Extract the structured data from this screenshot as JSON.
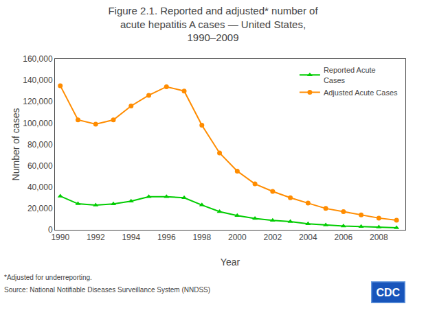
{
  "chart_data": {
    "type": "line",
    "title": "Figure 2.1. Reported and adjusted* number of\nacute hepatitis A cases — United States,\n1990–2009",
    "x_label": "Year",
    "y_label": "Number of cases",
    "x": [
      1990,
      1991,
      1992,
      1993,
      1994,
      1995,
      1996,
      1997,
      1998,
      1999,
      2000,
      2001,
      2002,
      2003,
      2004,
      2005,
      2006,
      2007,
      2008,
      2009
    ],
    "series": [
      {
        "name": "Adjusted Acute Cases",
        "color": "#FF8C00",
        "marker": "circle",
        "line_style": "solid",
        "values": [
          135000,
          103000,
          99000,
          103000,
          116000,
          126000,
          134000,
          130000,
          98000,
          72000,
          55000,
          43000,
          36000,
          30000,
          25000,
          20000,
          17000,
          14000,
          11000,
          9000
        ]
      },
      {
        "name": "Reported Acute\nCases",
        "color": "#00CC00",
        "marker": "triangle-up",
        "line_style": "solid",
        "values": [
          31522,
          24378,
          23112,
          24238,
          26796,
          31032,
          31032,
          30021,
          23229,
          17047,
          13397,
          10616,
          8795,
          7653,
          5683,
          4488,
          3579,
          2979,
          2585,
          1987
        ]
      }
    ],
    "xlim": [
      1989.7,
      2009.5
    ],
    "xticks": [
      1990,
      1992,
      1994,
      1996,
      1998,
      2000,
      2002,
      2004,
      2006,
      2008
    ],
    "ylim": [
      0,
      160000
    ],
    "yticks": [
      0,
      {
        "value": 20000,
        "label": "20,000"
      },
      {
        "value": 40000,
        "label": "40,000"
      },
      {
        "value": 60000,
        "label": "60,000"
      },
      {
        "value": 80000,
        "label": "80,000"
      },
      {
        "value": 100000,
        "label": "100,000"
      },
      {
        "value": 120000,
        "label": "120,000"
      },
      {
        "value": 140000,
        "label": "140,000"
      },
      {
        "value": 160000,
        "label": "160,000"
      }
    ],
    "grid": false,
    "legend": "upper right",
    "annotations": [
      "*Adjusted for underreporting.",
      "Source: National Notifiable Diseases Surveillance System (NNDSS)",
      "CDC"
    ]
  }
}
